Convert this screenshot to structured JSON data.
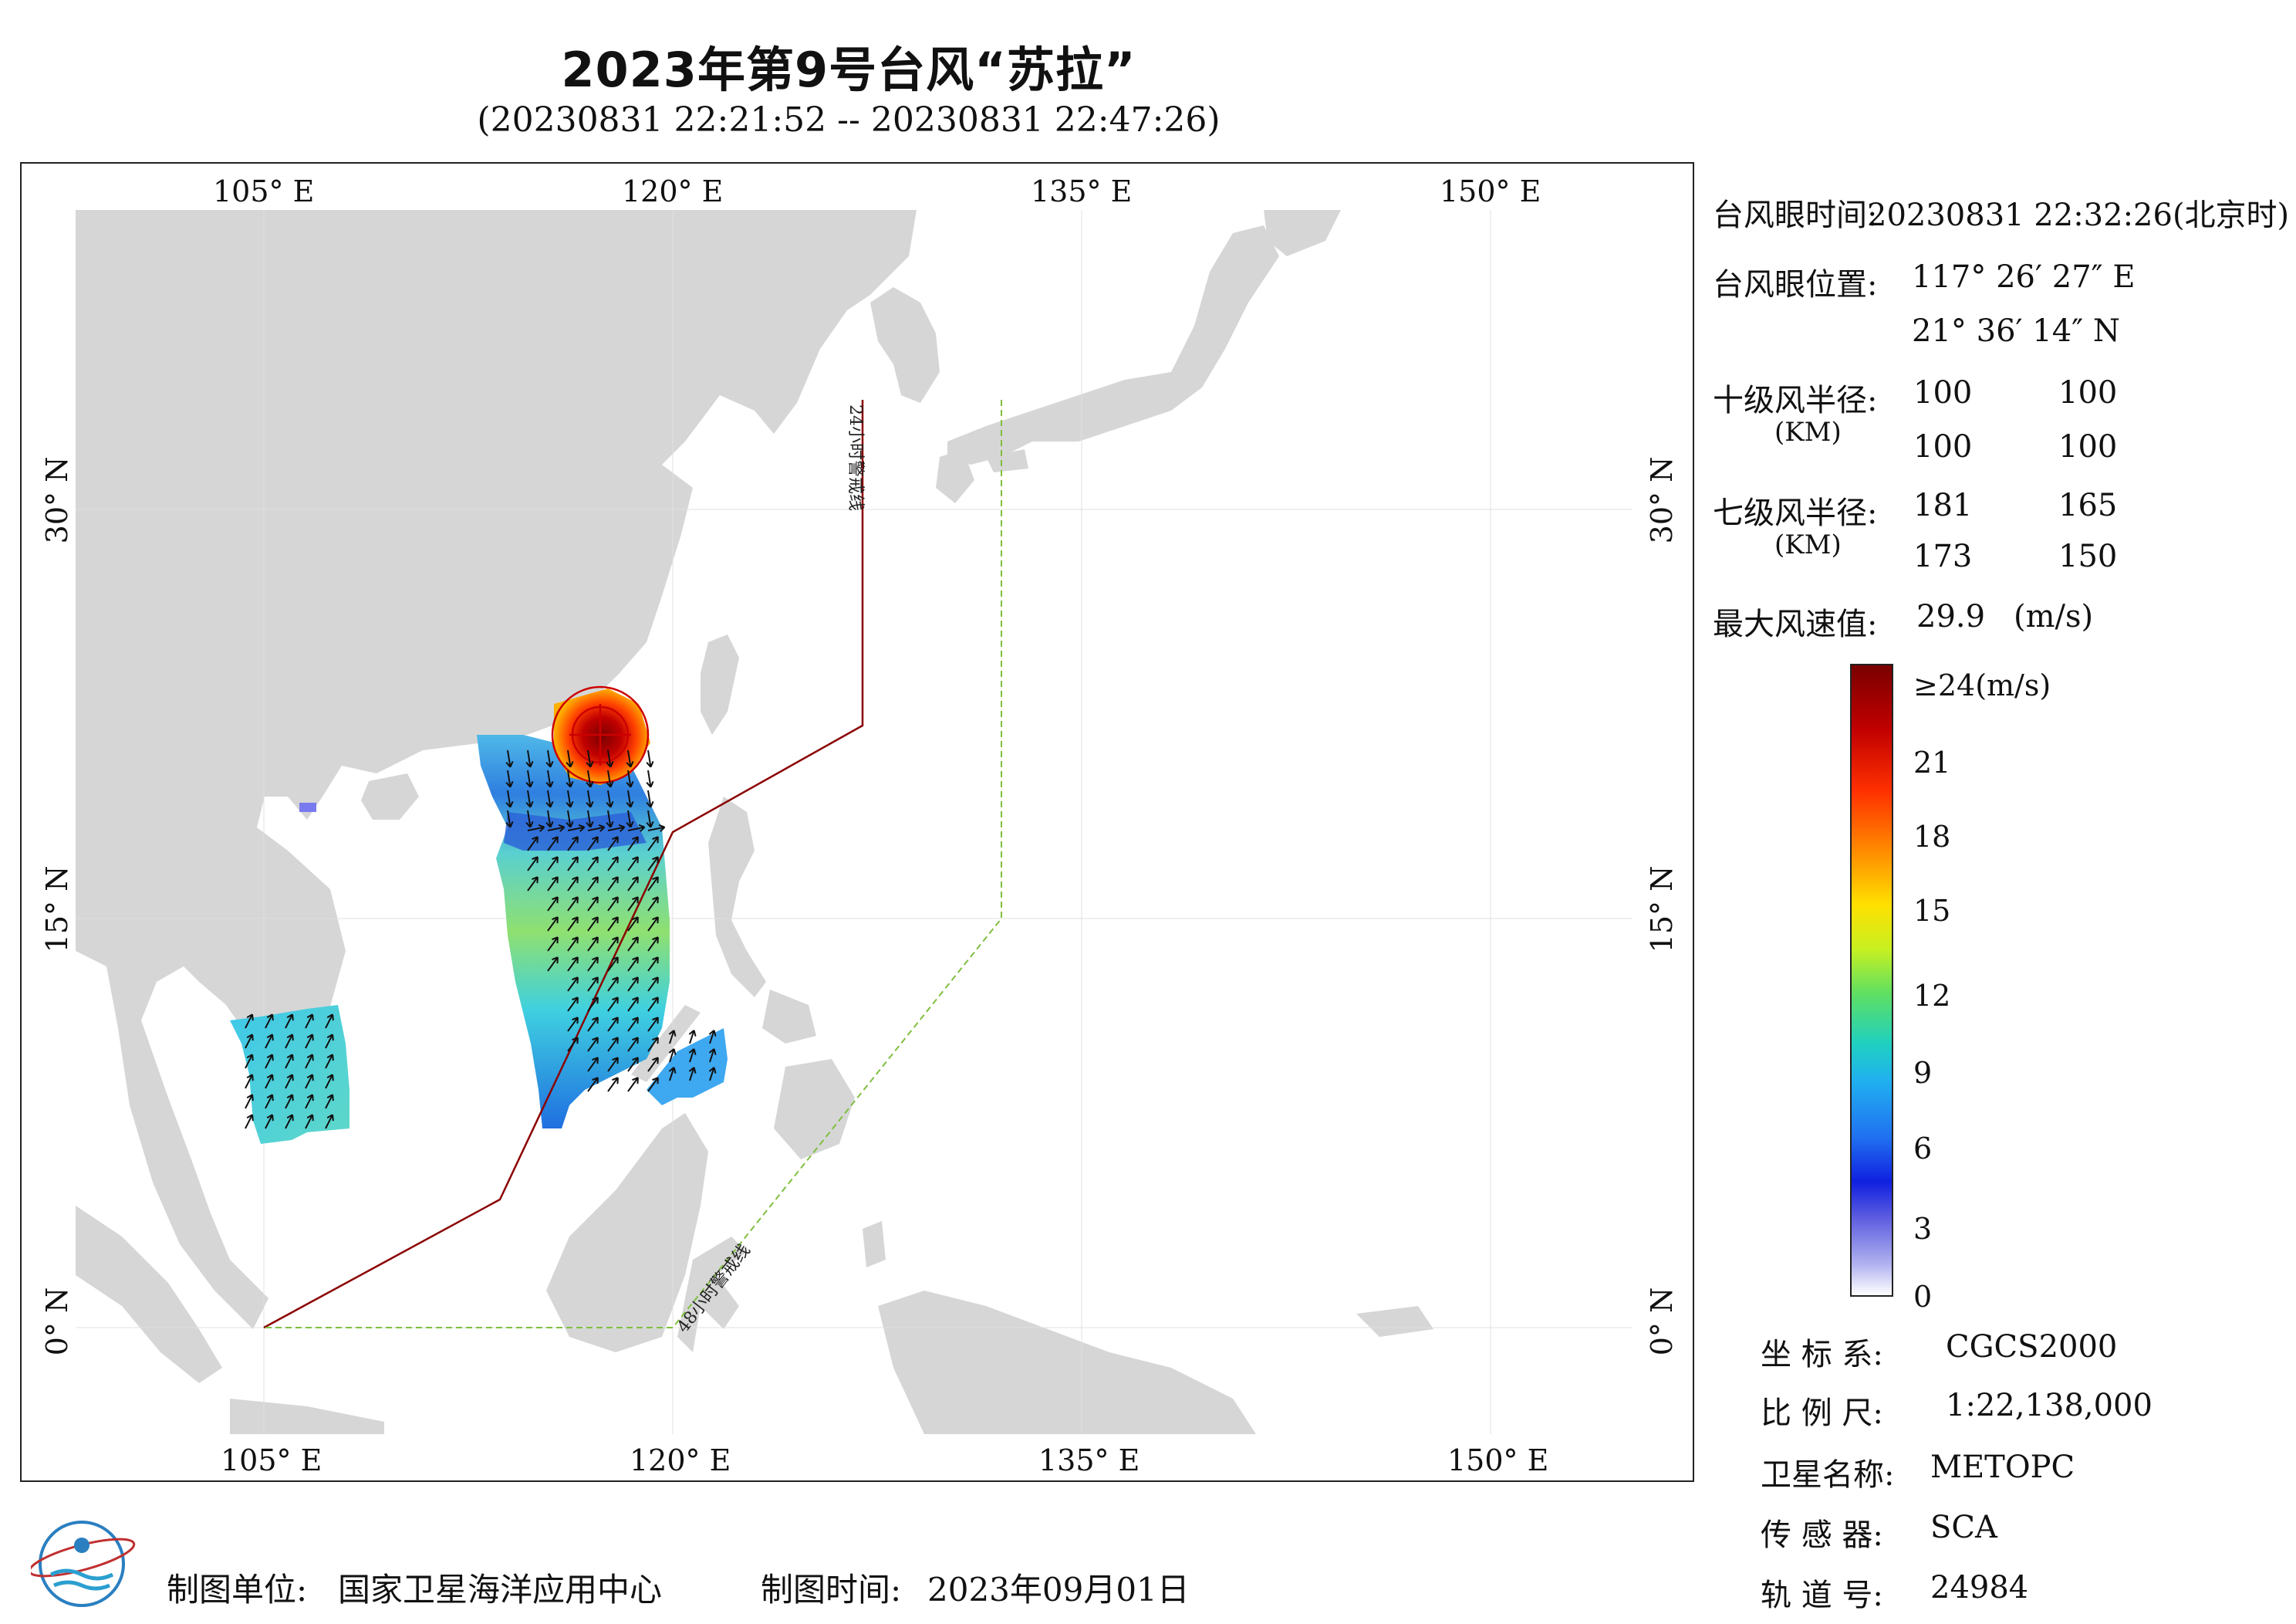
{
  "header": {
    "title": "2023年第9号台风“苏拉”",
    "subtitle": "(20230831 22:21:52 -- 20230831 22:47:26)"
  },
  "axes": {
    "lon_ticks": [
      "105° E",
      "120° E",
      "135° E",
      "150° E"
    ],
    "lat_ticks": [
      "30° N",
      "15° N",
      "0° N"
    ],
    "lon_range": [
      98,
      155
    ],
    "lat_range": [
      -4,
      41
    ]
  },
  "warning_lines": {
    "line24_label": "24小时警戒线",
    "line48_label": "48小时警戒线",
    "line24_color": "#8b0000",
    "line48_color": "#7fbf3f"
  },
  "typhoon": {
    "eye_time_label": "台风眼时间:",
    "eye_time_value": "20230831 22:32:26(北京时)",
    "eye_pos_label": "台风眼位置:",
    "eye_lon": "117° 26′ 27″ E",
    "eye_lat": "21° 36′ 14″ N",
    "r10_label": "十级风半径:",
    "r10_unit": "(KM)",
    "r10": [
      "100",
      "100",
      "100",
      "100"
    ],
    "r7_label": "七级风半径:",
    "r7_unit": "(KM)",
    "r7": [
      "181",
      "165",
      "173",
      "150"
    ],
    "max_wind_label": "最大风速值:",
    "max_wind_value": "29.9",
    "max_wind_unit": "(m/s)"
  },
  "colorbar": {
    "labels": [
      "≥24(m/s)",
      "21",
      "18",
      "15",
      "12",
      "9",
      "6",
      "3",
      "0"
    ]
  },
  "metadata": {
    "crs_label": "坐 标 系:",
    "crs_value": "CGCS2000",
    "scale_label": "比 例 尺:",
    "scale_value": "1:22,138,000",
    "satellite_label": "卫星名称:",
    "satellite_value": "METOPC",
    "sensor_label": "传 感 器:",
    "sensor_value": "SCA",
    "orbit_label": "轨 道 号:",
    "orbit_value": "24984"
  },
  "footer": {
    "unit_label": "制图单位:",
    "unit_value": "国家卫星海洋应用中心",
    "time_label": "制图时间:",
    "time_value": "2023年09月01日"
  },
  "colors": {
    "land": "#d6d6d6",
    "ocean": "#ffffff",
    "typhoon_circle": "#cc0000"
  }
}
